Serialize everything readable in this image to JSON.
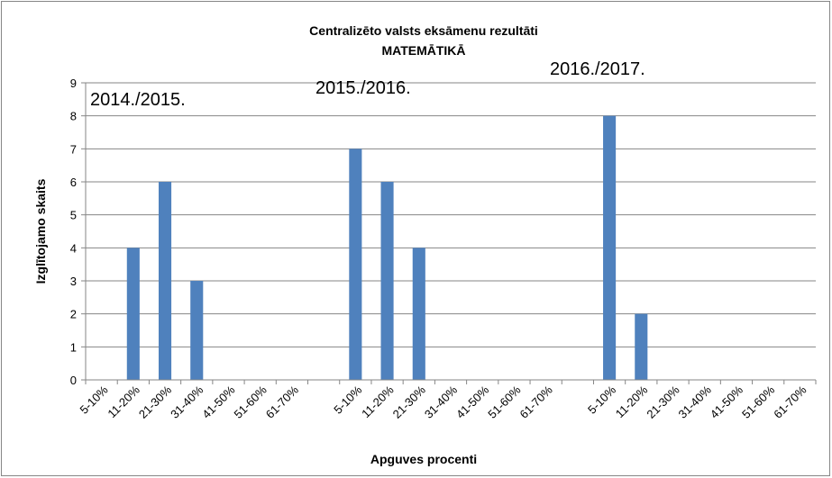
{
  "chart_data": {
    "type": "bar",
    "title": "Centralizēto valsts eksāmenu rezultāti",
    "subtitle": "MATEMĀTIKĀ",
    "y_label": "Izglītojamo skaits",
    "x_label": "Apguves procenti",
    "annotations": [
      "2014./2015.",
      "2015./2016.",
      "2016./2017."
    ],
    "categories": [
      "5-10%",
      "11-20%",
      "21-30%",
      "31-40%",
      "41-50%",
      "51-60%",
      "61-70%",
      null,
      "5-10%",
      "11-20%",
      "21-30%",
      "31-40%",
      "41-50%",
      "51-60%",
      "61-70%",
      null,
      "5-10%",
      "11-20%",
      "21-30%",
      "31-40%",
      "41-50%",
      "51-60%",
      "61-70%"
    ],
    "values": [
      0,
      4,
      6,
      3,
      0,
      0,
      0,
      null,
      7,
      6,
      4,
      0,
      0,
      0,
      0,
      null,
      8,
      2,
      0,
      0,
      0,
      0,
      0
    ],
    "color": "#4f81bd",
    "ylim": [
      0,
      9
    ],
    "yticks": [
      0,
      1,
      2,
      3,
      4,
      5,
      6,
      7,
      8,
      9
    ],
    "grid": true
  }
}
